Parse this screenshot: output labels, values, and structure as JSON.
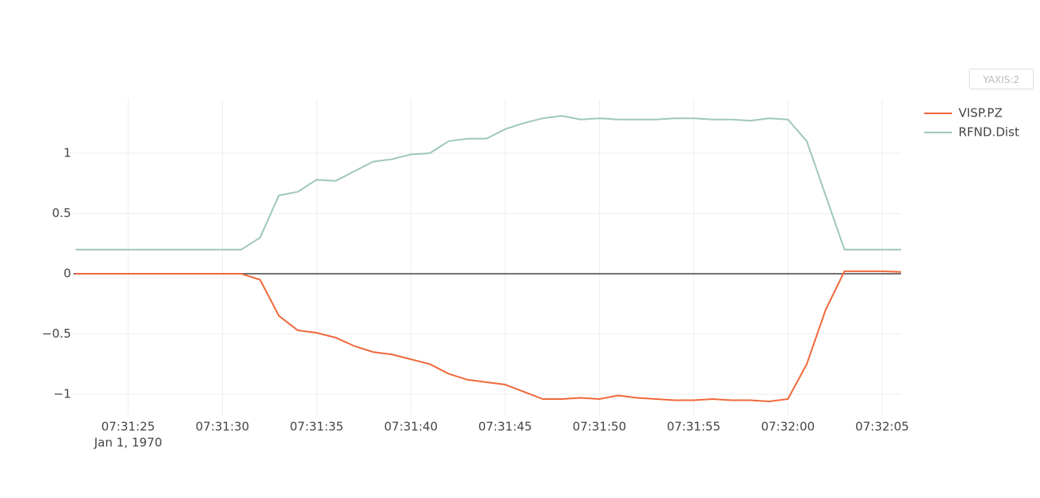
{
  "button_label": "YAXIS:2",
  "chart_data": {
    "type": "line",
    "x": [
      27082.2,
      27083,
      27084,
      27085,
      27086,
      27087,
      27088,
      27089,
      27090,
      27091,
      27092,
      27093,
      27094,
      27095,
      27096,
      27097,
      27098,
      27099,
      27100,
      27101,
      27102,
      27103,
      27104,
      27105,
      27106,
      27107,
      27108,
      27109,
      27110,
      27111,
      27112,
      27113,
      27114,
      27115,
      27116,
      27117,
      27118,
      27119,
      27120,
      27121,
      27122,
      27123,
      27124,
      27125,
      27126
    ],
    "x_date_label": "Jan 1, 1970",
    "series": [
      {
        "name": "VISP.PZ",
        "color": "#f0683a",
        "values": [
          0,
          0,
          0,
          0,
          0,
          0,
          0,
          0,
          0,
          0,
          -0.05,
          -0.35,
          -0.47,
          -0.49,
          -0.53,
          -0.6,
          -0.65,
          -0.67,
          -0.71,
          -0.75,
          -0.83,
          -0.88,
          -0.9,
          -0.92,
          -0.98,
          -1.04,
          -1.04,
          -1.03,
          -1.04,
          -1.01,
          -1.03,
          -1.04,
          -1.05,
          -1.05,
          -1.04,
          -1.05,
          -1.05,
          -1.06,
          -1.04,
          -0.75,
          -0.3,
          0.02,
          0.02,
          0.02,
          0.015
        ]
      },
      {
        "name": "RFND.Dist",
        "color": "#9ec9b4",
        "values": [
          0.2,
          0.2,
          0.2,
          0.2,
          0.2,
          0.2,
          0.2,
          0.2,
          0.2,
          0.2,
          0.3,
          0.65,
          0.68,
          0.78,
          0.77,
          0.85,
          0.93,
          0.95,
          0.99,
          1.0,
          1.1,
          1.12,
          1.12,
          1.2,
          1.25,
          1.29,
          1.31,
          1.28,
          1.29,
          1.28,
          1.28,
          1.28,
          1.29,
          1.29,
          1.28,
          1.28,
          1.27,
          1.29,
          1.28,
          1.1,
          0.65,
          0.2,
          0.2,
          0.2,
          0.2
        ]
      }
    ],
    "xlim": [
      27082.1,
      27126.0
    ],
    "xticks": [
      {
        "value": 27085,
        "label": "07:31:25"
      },
      {
        "value": 27090,
        "label": "07:31:30"
      },
      {
        "value": 27095,
        "label": "07:31:35"
      },
      {
        "value": 27100,
        "label": "07:31:40"
      },
      {
        "value": 27105,
        "label": "07:31:45"
      },
      {
        "value": 27110,
        "label": "07:31:50"
      },
      {
        "value": 27115,
        "label": "07:31:55"
      },
      {
        "value": 27120,
        "label": "07:32:00"
      },
      {
        "value": 27125,
        "label": "07:32:05"
      }
    ],
    "ylim": [
      -1.179,
      1.45
    ],
    "yticks": [
      {
        "value": -1,
        "label": "−1"
      },
      {
        "value": -0.5,
        "label": "−0.5"
      },
      0,
      0.5,
      1
    ],
    "grid": true
  }
}
